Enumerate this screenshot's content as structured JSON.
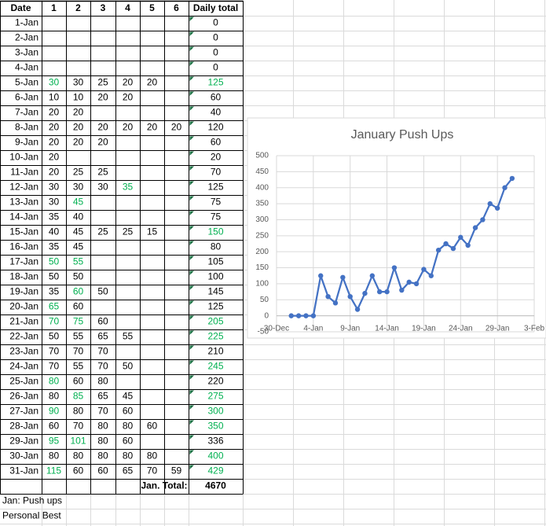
{
  "table": {
    "header": [
      "Date",
      "1",
      "2",
      "3",
      "4",
      "5",
      "6",
      "Daily total"
    ],
    "best_color": "#00b050",
    "rows": [
      {
        "date": "1-Jan",
        "cells": [
          null,
          null,
          null,
          null,
          null,
          null,
          0
        ],
        "best": []
      },
      {
        "date": "2-Jan",
        "cells": [
          null,
          null,
          null,
          null,
          null,
          null,
          0
        ],
        "best": []
      },
      {
        "date": "3-Jan",
        "cells": [
          null,
          null,
          null,
          null,
          null,
          null,
          0
        ],
        "best": []
      },
      {
        "date": "4-Jan",
        "cells": [
          null,
          null,
          null,
          null,
          null,
          null,
          0
        ],
        "best": []
      },
      {
        "date": "5-Jan",
        "cells": [
          30,
          30,
          25,
          20,
          20,
          null,
          125
        ],
        "best": [
          0,
          6
        ]
      },
      {
        "date": "6-Jan",
        "cells": [
          10,
          10,
          20,
          20,
          null,
          null,
          60
        ],
        "best": []
      },
      {
        "date": "7-Jan",
        "cells": [
          20,
          20,
          null,
          null,
          null,
          null,
          40
        ],
        "best": []
      },
      {
        "date": "8-Jan",
        "cells": [
          20,
          20,
          20,
          20,
          20,
          20,
          120
        ],
        "best": []
      },
      {
        "date": "9-Jan",
        "cells": [
          20,
          20,
          20,
          null,
          null,
          null,
          60
        ],
        "best": []
      },
      {
        "date": "10-Jan",
        "cells": [
          20,
          null,
          null,
          null,
          null,
          null,
          20
        ],
        "best": []
      },
      {
        "date": "11-Jan",
        "cells": [
          20,
          25,
          25,
          null,
          null,
          null,
          70
        ],
        "best": []
      },
      {
        "date": "12-Jan",
        "cells": [
          30,
          30,
          30,
          35,
          null,
          null,
          125
        ],
        "best": [
          3
        ]
      },
      {
        "date": "13-Jan",
        "cells": [
          30,
          45,
          null,
          null,
          null,
          null,
          75
        ],
        "best": [
          1
        ]
      },
      {
        "date": "14-Jan",
        "cells": [
          35,
          40,
          null,
          null,
          null,
          null,
          75
        ],
        "best": []
      },
      {
        "date": "15-Jan",
        "cells": [
          40,
          45,
          25,
          25,
          15,
          null,
          150
        ],
        "best": [
          6
        ]
      },
      {
        "date": "16-Jan",
        "cells": [
          35,
          45,
          null,
          null,
          null,
          null,
          80
        ],
        "best": []
      },
      {
        "date": "17-Jan",
        "cells": [
          50,
          55,
          null,
          null,
          null,
          null,
          105
        ],
        "best": [
          0,
          1
        ]
      },
      {
        "date": "18-Jan",
        "cells": [
          50,
          50,
          null,
          null,
          null,
          null,
          100
        ],
        "best": []
      },
      {
        "date": "19-Jan",
        "cells": [
          35,
          60,
          50,
          null,
          null,
          null,
          145
        ],
        "best": [
          1
        ]
      },
      {
        "date": "20-Jan",
        "cells": [
          65,
          60,
          null,
          null,
          null,
          null,
          125
        ],
        "best": [
          0
        ]
      },
      {
        "date": "21-Jan",
        "cells": [
          70,
          75,
          60,
          null,
          null,
          null,
          205
        ],
        "best": [
          0,
          1,
          6
        ]
      },
      {
        "date": "22-Jan",
        "cells": [
          50,
          55,
          65,
          55,
          null,
          null,
          225
        ],
        "best": [
          6
        ]
      },
      {
        "date": "23-Jan",
        "cells": [
          70,
          70,
          70,
          null,
          null,
          null,
          210
        ],
        "best": []
      },
      {
        "date": "24-Jan",
        "cells": [
          70,
          55,
          70,
          50,
          null,
          null,
          245
        ],
        "best": [
          6
        ]
      },
      {
        "date": "25-Jan",
        "cells": [
          80,
          60,
          80,
          null,
          null,
          null,
          220
        ],
        "best": [
          0
        ]
      },
      {
        "date": "26-Jan",
        "cells": [
          80,
          85,
          65,
          45,
          null,
          null,
          275
        ],
        "best": [
          1,
          6
        ]
      },
      {
        "date": "27-Jan",
        "cells": [
          90,
          80,
          70,
          60,
          null,
          null,
          300
        ],
        "best": [
          0,
          6
        ]
      },
      {
        "date": "28-Jan",
        "cells": [
          60,
          70,
          80,
          80,
          60,
          null,
          350
        ],
        "best": [
          6
        ]
      },
      {
        "date": "29-Jan",
        "cells": [
          95,
          101,
          80,
          60,
          null,
          null,
          336
        ],
        "best": [
          0,
          1
        ]
      },
      {
        "date": "30-Jan",
        "cells": [
          80,
          80,
          80,
          80,
          80,
          null,
          400
        ],
        "best": [
          6
        ]
      },
      {
        "date": "31-Jan",
        "cells": [
          115,
          60,
          60,
          65,
          70,
          59,
          429
        ],
        "best": [
          0,
          6
        ]
      }
    ],
    "total_label": "Jan. Total:",
    "total": 4670,
    "total_color": "#ff0000",
    "notes": [
      "Jan: Push ups",
      "Personal Best"
    ]
  },
  "chart_data": {
    "type": "line",
    "title": "January Push Ups",
    "x": [
      1,
      2,
      3,
      4,
      5,
      6,
      7,
      8,
      9,
      10,
      11,
      12,
      13,
      14,
      15,
      16,
      17,
      18,
      19,
      20,
      21,
      22,
      23,
      24,
      25,
      26,
      27,
      28,
      29,
      30,
      31
    ],
    "values": [
      0,
      0,
      0,
      0,
      125,
      60,
      40,
      120,
      60,
      20,
      70,
      125,
      75,
      75,
      150,
      80,
      105,
      100,
      145,
      125,
      205,
      225,
      210,
      245,
      220,
      275,
      300,
      350,
      336,
      400,
      429
    ],
    "color": "#4472c4",
    "xlim": [
      -1,
      34
    ],
    "xticks": [
      {
        "value": -1,
        "label": "30-Dec"
      },
      {
        "value": 4,
        "label": "4-Jan"
      },
      {
        "value": 9,
        "label": "9-Jan"
      },
      {
        "value": 14,
        "label": "14-Jan"
      },
      {
        "value": 19,
        "label": "19-Jan"
      },
      {
        "value": 24,
        "label": "24-Jan"
      },
      {
        "value": 29,
        "label": "29-Jan"
      },
      {
        "value": 34,
        "label": "3-Feb"
      }
    ],
    "ylim": [
      -50,
      500
    ],
    "yticks": [
      -50,
      0,
      50,
      100,
      150,
      200,
      250,
      300,
      350,
      400,
      450,
      500
    ],
    "grid": true
  }
}
